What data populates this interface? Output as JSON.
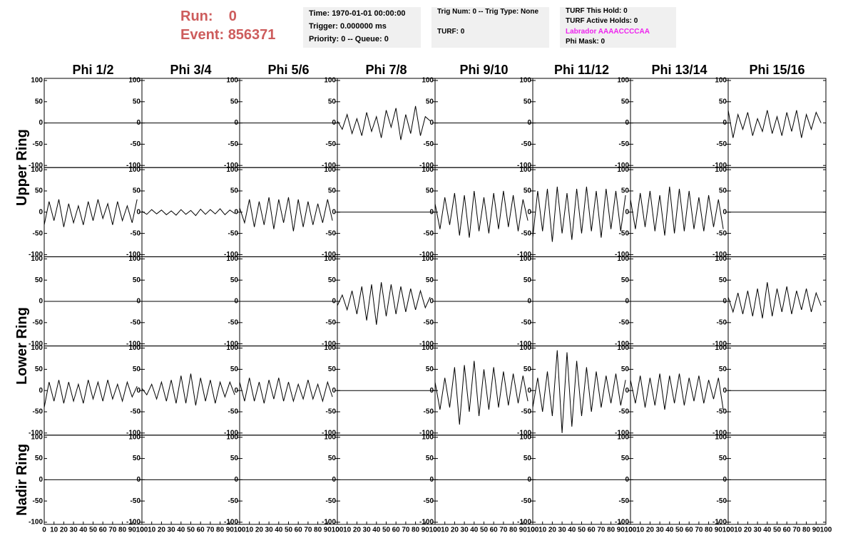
{
  "header": {
    "run": {
      "label": "Run:",
      "value": "0"
    },
    "event": {
      "label": "Event:",
      "value": "856371"
    },
    "box_time": [
      "Time: 1970-01-01 00:00:00",
      "Trigger: 0.000000 ms",
      "Priority: 0 -- Queue: 0"
    ],
    "box_trig": [
      "Trig Num: 0 -- Trig Type: None",
      "TURF: 0"
    ],
    "box_turf": [
      {
        "text": "TURF This Hold: 0"
      },
      {
        "text": "TURF Active Holds: 0"
      },
      {
        "text": "Labrador AAAACCCCAA",
        "color": "#ee22ee"
      },
      {
        "text": "Phi Mask: 0"
      }
    ]
  },
  "panels": {
    "columns": [
      "Phi 1/2",
      "Phi 3/4",
      "Phi 5/6",
      "Phi 7/8",
      "Phi 9/10",
      "Phi 11/12",
      "Phi 13/14",
      "Phi 15/16"
    ],
    "ring_labels": [
      "Upper Ring",
      "Lower Ring",
      "Nadir Ring"
    ],
    "ylim": [
      -105,
      105
    ],
    "yticks": [
      100,
      50,
      0,
      -50,
      -100
    ],
    "xlim": [
      0,
      100
    ],
    "xticks": [
      0,
      10,
      20,
      30,
      40,
      50,
      60,
      70,
      80,
      90,
      100
    ],
    "sample_x": [
      0,
      5,
      10,
      15,
      20,
      25,
      30,
      35,
      40,
      45,
      50,
      55,
      60,
      65,
      70,
      75,
      80,
      85,
      90,
      95
    ],
    "rows": [
      {
        "traces": [
          null,
          null,
          null,
          [
            5,
            -15,
            20,
            -25,
            10,
            -30,
            25,
            -20,
            15,
            -35,
            30,
            -10,
            35,
            -40,
            20,
            -25,
            40,
            -30,
            15,
            5
          ],
          null,
          null,
          null,
          [
            30,
            -35,
            20,
            -15,
            25,
            -30,
            10,
            -20,
            30,
            -25,
            15,
            -30,
            25,
            -20,
            30,
            -35,
            20,
            -15,
            25,
            0
          ]
        ]
      },
      {
        "traces": [
          [
            -30,
            25,
            -20,
            30,
            -35,
            20,
            -25,
            15,
            -30,
            25,
            -20,
            30,
            -15,
            20,
            -30,
            25,
            -20,
            15,
            -25,
            30
          ],
          [
            2,
            -5,
            6,
            -4,
            5,
            -6,
            3,
            -7,
            6,
            -5,
            4,
            -8,
            7,
            -5,
            6,
            -4,
            8,
            -6,
            5,
            -3
          ],
          [
            10,
            -25,
            30,
            -35,
            25,
            -30,
            35,
            -40,
            30,
            -25,
            35,
            -45,
            30,
            -35,
            25,
            -30,
            20,
            -25,
            30,
            -20
          ],
          null,
          [
            20,
            -40,
            35,
            -30,
            45,
            -55,
            40,
            -60,
            50,
            -45,
            35,
            -50,
            45,
            -40,
            50,
            -35,
            40,
            -45,
            30,
            -20
          ],
          [
            -60,
            50,
            -45,
            55,
            -70,
            60,
            -50,
            45,
            -65,
            55,
            -50,
            60,
            -45,
            50,
            -60,
            55,
            -40,
            50,
            -45,
            40
          ],
          [
            30,
            -40,
            45,
            -35,
            50,
            -45,
            40,
            -55,
            60,
            -50,
            55,
            -45,
            50,
            -40,
            35,
            -45,
            40,
            -35,
            30,
            -40
          ],
          null
        ]
      },
      {
        "traces": [
          null,
          null,
          null,
          [
            -10,
            15,
            -20,
            25,
            -30,
            35,
            -45,
            40,
            -55,
            45,
            -35,
            40,
            -30,
            35,
            -25,
            30,
            -20,
            25,
            -15,
            10
          ],
          null,
          null,
          null,
          [
            10,
            -25,
            20,
            -30,
            25,
            -35,
            30,
            -40,
            45,
            -35,
            30,
            -25,
            35,
            -30,
            25,
            -20,
            30,
            -25,
            20,
            -10
          ]
        ]
      },
      {
        "traces": [
          [
            -40,
            20,
            -25,
            25,
            -30,
            20,
            -25,
            15,
            -30,
            25,
            -20,
            20,
            -25,
            25,
            -20,
            15,
            -25,
            20,
            -15,
            10
          ],
          [
            5,
            -10,
            15,
            -20,
            20,
            -25,
            25,
            -30,
            35,
            -30,
            40,
            -35,
            30,
            -25,
            25,
            -30,
            20,
            -15,
            20,
            -10
          ],
          [
            20,
            -25,
            30,
            -25,
            20,
            -30,
            25,
            -20,
            30,
            -25,
            20,
            -25,
            15,
            -20,
            25,
            -20,
            15,
            -25,
            20,
            -15
          ],
          null,
          [
            20,
            -45,
            30,
            -40,
            55,
            -80,
            60,
            -50,
            70,
            -60,
            50,
            -45,
            55,
            -40,
            45,
            -35,
            40,
            -30,
            35,
            -25
          ],
          [
            -40,
            30,
            -50,
            45,
            -60,
            95,
            -100,
            90,
            -85,
            70,
            -60,
            55,
            -50,
            45,
            -40,
            35,
            -30,
            40,
            -35,
            25
          ],
          [
            25,
            -30,
            35,
            -40,
            30,
            -35,
            40,
            -45,
            35,
            -30,
            40,
            -35,
            30,
            -25,
            35,
            -30,
            25,
            -20,
            30,
            -45
          ],
          null
        ]
      },
      {
        "traces": [
          null,
          null,
          null,
          null,
          null,
          null,
          null,
          null
        ]
      }
    ]
  }
}
